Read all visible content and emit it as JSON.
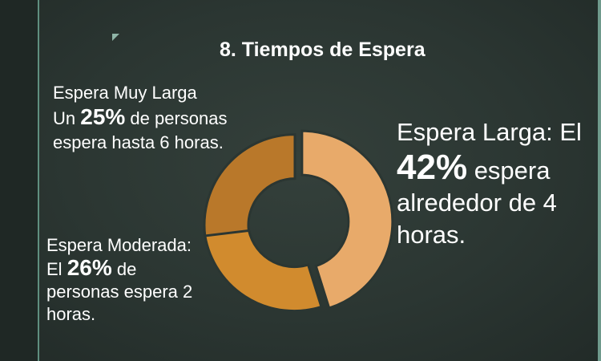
{
  "title": "8. Tiempos de Espera",
  "chart_data": {
    "type": "pie",
    "variant": "donut",
    "title": "8. Tiempos de Espera",
    "slices": [
      {
        "name": "Espera Larga",
        "value": 42,
        "color": "#e8aa6a",
        "label_line1": "Espera Larga: El",
        "pct_text": "42%",
        "label_rest1": " espera",
        "label_line3": "alrededor de 4",
        "label_line4": "horas."
      },
      {
        "name": "Espera Moderada",
        "value": 26,
        "color": "#d18b2e",
        "label_line1": "Espera Moderada:",
        "label_pre2": "El ",
        "pct_text": "26%",
        "label_rest2": " de",
        "label_line3": "personas espera 2",
        "label_line4": "horas."
      },
      {
        "name": "Espera Muy Larga",
        "value": 25,
        "color": "#b9782a",
        "label_line1": "Espera Muy Larga",
        "label_pre2": "Un ",
        "pct_text": "25%",
        "label_rest2": " de personas",
        "label_line3": "espera hasta 6 horas."
      }
    ]
  }
}
